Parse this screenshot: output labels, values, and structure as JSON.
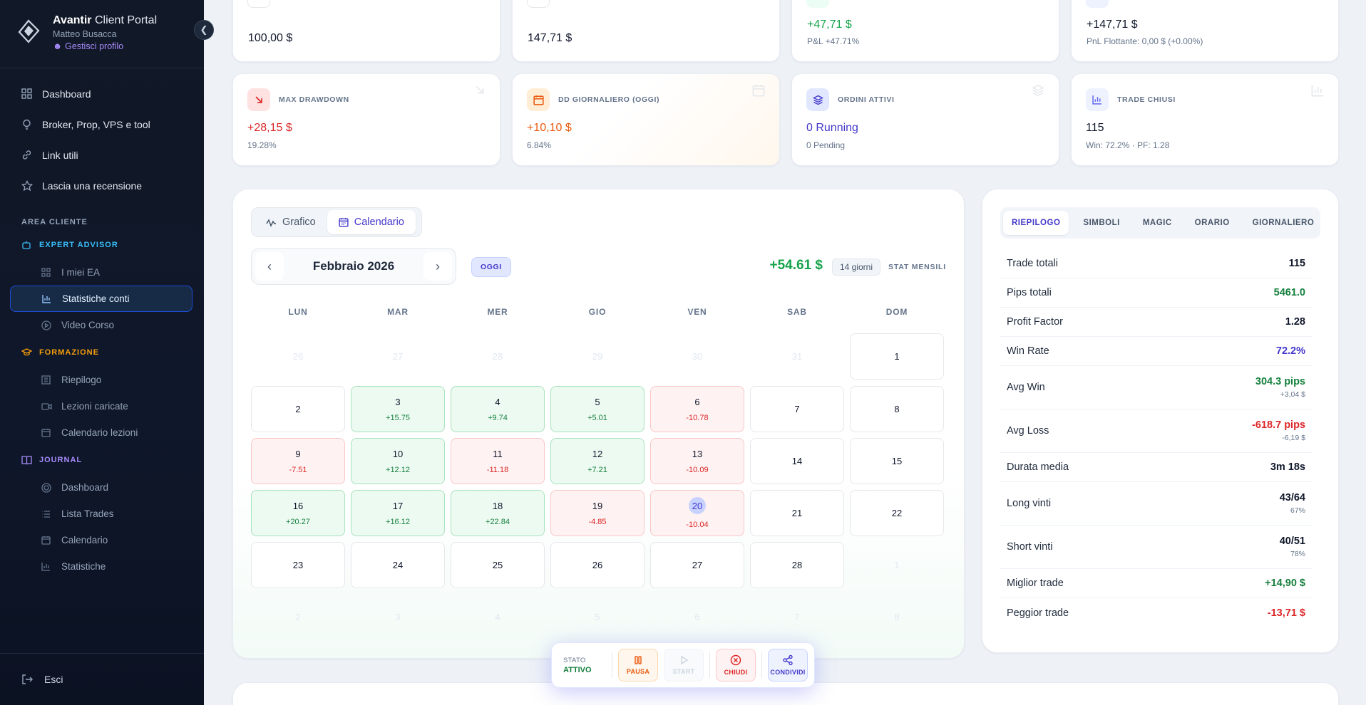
{
  "sidebar": {
    "brand_bold": "Avantir",
    "brand_rest": "Client Portal",
    "user": "Matteo Busacca",
    "profile_link": "Gestisci profilo",
    "nav": [
      {
        "label": "Dashboard",
        "icon": "grid-icon"
      },
      {
        "label": "Broker, Prop, VPS e tool",
        "icon": "lightbulb-icon"
      },
      {
        "label": "Link utili",
        "icon": "link-icon"
      },
      {
        "label": "Lascia una recensione",
        "icon": "star-icon"
      }
    ],
    "section": "AREA CLIENTE",
    "expert_advisor": {
      "title": "EXPERT ADVISOR",
      "color": "#38bdf8",
      "items": [
        "I miei EA",
        "Statistiche conti",
        "Video Corso"
      ]
    },
    "formazione": {
      "title": "FORMAZIONE",
      "color": "#f59e0b",
      "items": [
        "Riepilogo",
        "Lezioni caricate",
        "Calendario lezioni"
      ]
    },
    "journal": {
      "title": "JOURNAL",
      "color": "#a78bfa",
      "items": [
        "Dashboard",
        "Lista Trades",
        "Calendario",
        "Statistiche"
      ]
    },
    "logout": "Esci"
  },
  "top_cards": [
    {
      "value": "100,00 $",
      "sub": ""
    },
    {
      "value": "147,71 $",
      "sub": ""
    },
    {
      "value": "+47,71 $",
      "sub": "P&L +47.71%"
    },
    {
      "value": "+147,71 $",
      "sub": "PnL Flottante: 0,00 $ (+0.00%)"
    }
  ],
  "stat_cards": [
    {
      "label": "MAX DRAWDOWN",
      "value": "+28,15 $",
      "sub": "19.28%"
    },
    {
      "label": "DD GIORNALIERO (OGGI)",
      "value": "+10,10 $",
      "sub": "6.84%"
    },
    {
      "label": "ORDINI ATTIVI",
      "value": "0 Running",
      "sub": "0 Pending"
    },
    {
      "label": "TRADE CHIUSI",
      "value": "115",
      "sub": "Win: 72.2% · PF: 1.28"
    }
  ],
  "calendar": {
    "tabs": [
      "Grafico",
      "Calendario"
    ],
    "month": "Febbraio 2026",
    "today_label": "OGGI",
    "month_total": "+54.61 $",
    "days_count": "14 giorni",
    "stat_mensili": "STAT MENSILI",
    "weekdays": [
      "LUN",
      "MAR",
      "MER",
      "GIO",
      "VEN",
      "SAB",
      "DOM"
    ],
    "weeks": [
      [
        {
          "d": "26",
          "t": "out"
        },
        {
          "d": "27",
          "t": "out"
        },
        {
          "d": "28",
          "t": "out"
        },
        {
          "d": "29",
          "t": "out"
        },
        {
          "d": "30",
          "t": "out"
        },
        {
          "d": "31",
          "t": "out"
        },
        {
          "d": "1",
          "t": "normal"
        }
      ],
      [
        {
          "d": "2",
          "t": "normal"
        },
        {
          "d": "3",
          "t": "pos",
          "p": "+15.75"
        },
        {
          "d": "4",
          "t": "pos",
          "p": "+9.74"
        },
        {
          "d": "5",
          "t": "pos",
          "p": "+5.01"
        },
        {
          "d": "6",
          "t": "neg",
          "p": "-10.78"
        },
        {
          "d": "7",
          "t": "normal"
        },
        {
          "d": "8",
          "t": "normal"
        }
      ],
      [
        {
          "d": "9",
          "t": "neg",
          "p": "-7.51"
        },
        {
          "d": "10",
          "t": "pos",
          "p": "+12.12"
        },
        {
          "d": "11",
          "t": "neg",
          "p": "-11.18"
        },
        {
          "d": "12",
          "t": "pos",
          "p": "+7.21"
        },
        {
          "d": "13",
          "t": "neg",
          "p": "-10.09"
        },
        {
          "d": "14",
          "t": "normal"
        },
        {
          "d": "15",
          "t": "normal"
        }
      ],
      [
        {
          "d": "16",
          "t": "pos",
          "p": "+20.27"
        },
        {
          "d": "17",
          "t": "pos",
          "p": "+16.12"
        },
        {
          "d": "18",
          "t": "pos",
          "p": "+22.84"
        },
        {
          "d": "19",
          "t": "neg",
          "p": "-4.85"
        },
        {
          "d": "20",
          "t": "neg",
          "p": "-10.04",
          "today": true
        },
        {
          "d": "21",
          "t": "normal"
        },
        {
          "d": "22",
          "t": "normal"
        }
      ],
      [
        {
          "d": "23",
          "t": "normal"
        },
        {
          "d": "24",
          "t": "normal"
        },
        {
          "d": "25",
          "t": "normal"
        },
        {
          "d": "26",
          "t": "normal"
        },
        {
          "d": "27",
          "t": "normal"
        },
        {
          "d": "28",
          "t": "normal"
        },
        {
          "d": "1",
          "t": "out"
        }
      ],
      [
        {
          "d": "2",
          "t": "out"
        },
        {
          "d": "3",
          "t": "out"
        },
        {
          "d": "4",
          "t": "out"
        },
        {
          "d": "5",
          "t": "out"
        },
        {
          "d": "6",
          "t": "out"
        },
        {
          "d": "7",
          "t": "out"
        },
        {
          "d": "8",
          "t": "out"
        }
      ]
    ]
  },
  "summary": {
    "tabs": [
      "RIEPILOGO",
      "SIMBOLI",
      "MAGIC",
      "ORARIO",
      "GIORNALIERO"
    ],
    "rows": [
      {
        "k": "Trade totali",
        "v": "115",
        "c": "dark"
      },
      {
        "k": "Pips totali",
        "v": "5461.0",
        "c": "green"
      },
      {
        "k": "Profit Factor",
        "v": "1.28",
        "c": "dark"
      },
      {
        "k": "Win Rate",
        "v": "72.2%",
        "c": "indigo"
      },
      {
        "k": "Avg Win",
        "v": "304.3 pips",
        "v2": "+3,04 $",
        "c": "green"
      },
      {
        "k": "Avg Loss",
        "v": "-618.7 pips",
        "v2": "-6,19 $",
        "c": "red"
      },
      {
        "k": "Durata media",
        "v": "3m 18s",
        "c": "dark"
      },
      {
        "k": "Long vinti",
        "v": "43/64",
        "v2": "67%",
        "c": "dark"
      },
      {
        "k": "Short vinti",
        "v": "40/51",
        "v2": "78%",
        "c": "dark"
      },
      {
        "k": "Miglior trade",
        "v": "+14,90 $",
        "c": "green"
      },
      {
        "k": "Peggior trade",
        "v": "-13,71 $",
        "c": "red"
      }
    ]
  },
  "control_bar": {
    "state_label": "STATO",
    "state_value": "ATTIVO",
    "pause": "PAUSA",
    "start": "START",
    "close": "CHIUDI",
    "share": "CONDIVIDI"
  }
}
